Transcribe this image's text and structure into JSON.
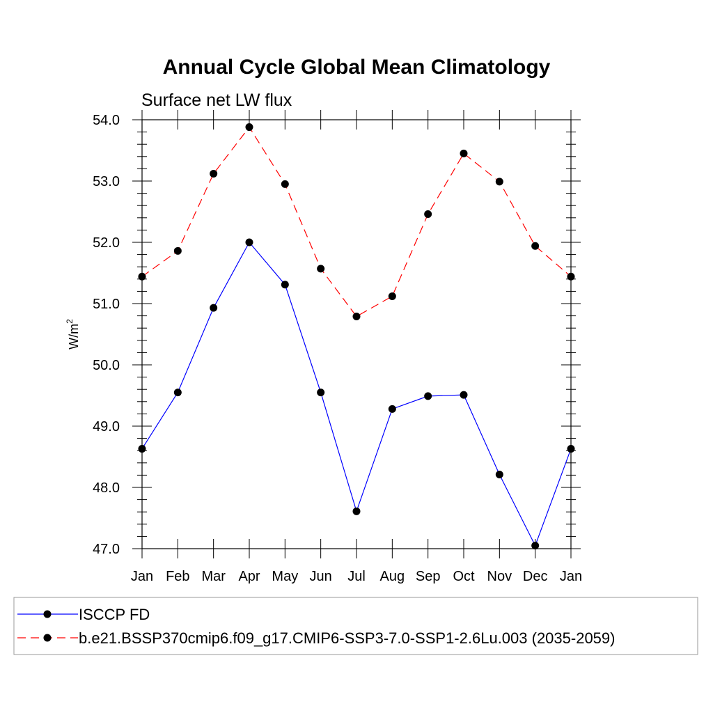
{
  "chart_data": {
    "type": "line",
    "title": "Annual Cycle Global Mean Climatology",
    "subtitle": "Surface net LW flux",
    "ylabel": "W/m",
    "ylabel_sup": "2",
    "xlabel": "",
    "categories": [
      "Jan",
      "Feb",
      "Mar",
      "Apr",
      "May",
      "Jun",
      "Jul",
      "Aug",
      "Sep",
      "Oct",
      "Nov",
      "Dec",
      "Jan"
    ],
    "ylim": [
      47.0,
      54.0
    ],
    "yticks": [
      47.0,
      48.0,
      49.0,
      50.0,
      51.0,
      52.0,
      53.0,
      54.0
    ],
    "ytick_labels": [
      "47.0",
      "48.0",
      "49.0",
      "50.0",
      "51.0",
      "52.0",
      "53.0",
      "54.0"
    ],
    "legend_position": "bottom",
    "series": [
      {
        "name": "ISCCP FD",
        "color": "#0000ff",
        "style": "solid",
        "marker": "circle",
        "values": [
          48.63,
          49.55,
          50.93,
          52.0,
          51.31,
          49.55,
          47.61,
          49.28,
          49.49,
          49.51,
          48.21,
          47.05,
          48.63
        ]
      },
      {
        "name": "b.e21.BSSP370cmip6.f09_g17.CMIP6-SSP3-7.0-SSP1-2.6Lu.003 (2035-2059)",
        "color": "#ff0000",
        "style": "dashed",
        "marker": "circle",
        "values": [
          51.44,
          51.86,
          53.12,
          53.88,
          52.95,
          51.57,
          50.79,
          51.12,
          52.46,
          53.45,
          52.99,
          51.94,
          51.44
        ]
      }
    ]
  }
}
